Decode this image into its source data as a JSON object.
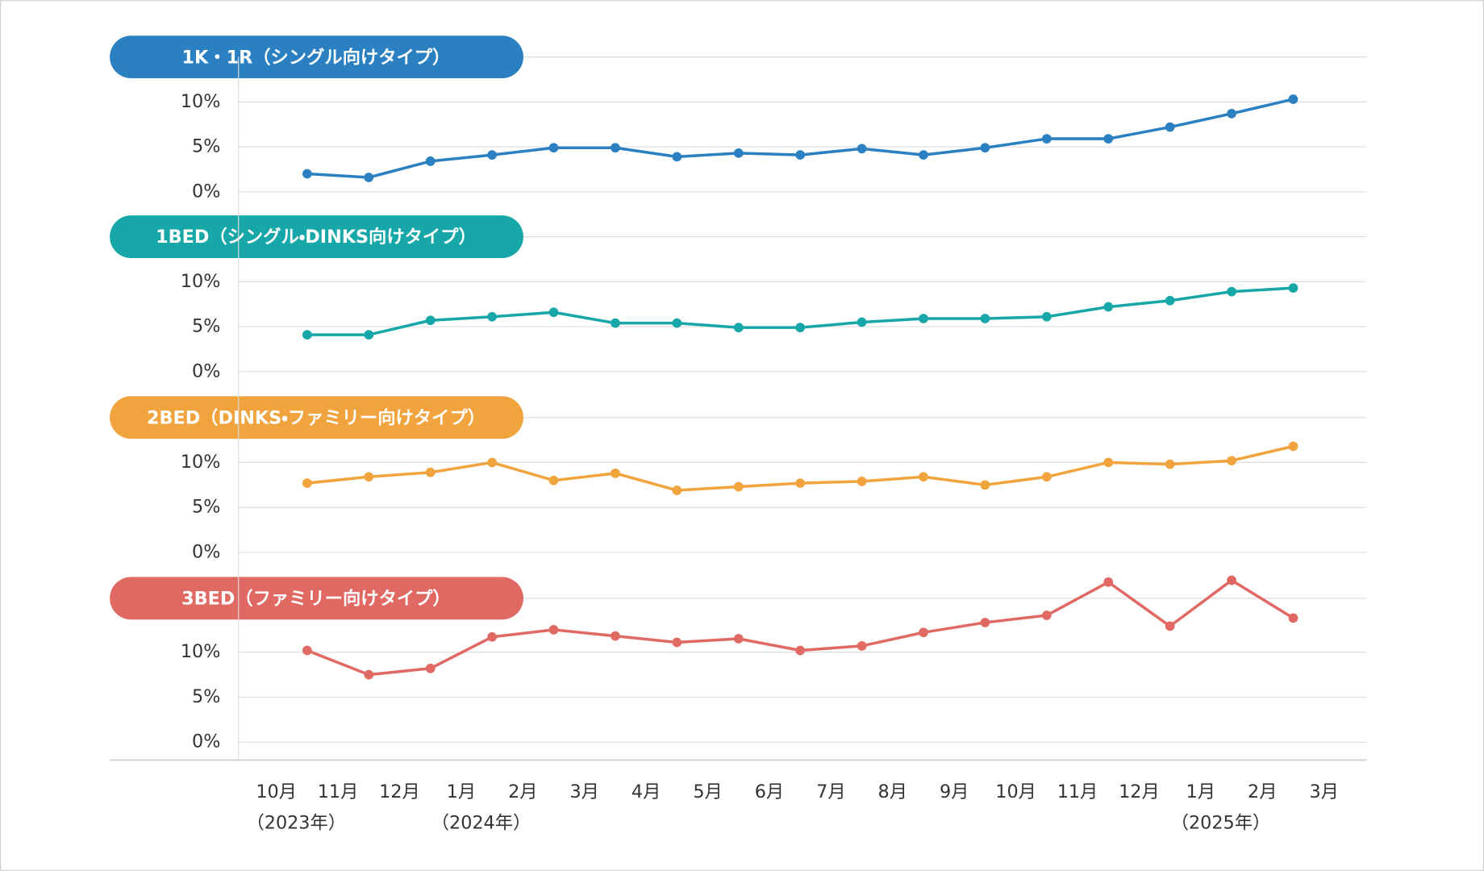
{
  "chart_data": {
    "type": "line",
    "categories": [
      "10月",
      "11月",
      "12月",
      "1月",
      "2月",
      "3月",
      "4月",
      "5月",
      "6月",
      "7月",
      "8月",
      "9月",
      "10月",
      "11月",
      "12月",
      "1月",
      "2月",
      "3月"
    ],
    "x_sublabels": [
      "（2023年）",
      null,
      null,
      "（2024年）",
      null,
      null,
      null,
      null,
      null,
      null,
      null,
      null,
      null,
      null,
      null,
      "（2025年）",
      null,
      null
    ],
    "grid": true,
    "series": [
      {
        "name": "1K・1R（シングル向けタイプ）",
        "color": "#2a80c0",
        "values": [
          2.0,
          1.6,
          3.4,
          4.1,
          4.9,
          4.9,
          3.9,
          4.3,
          4.1,
          4.8,
          4.1,
          4.9,
          5.9,
          5.9,
          7.2,
          8.7,
          10.3,
          null
        ],
        "ylim": [
          0,
          15
        ],
        "yticks": [
          {
            "value": 0,
            "label": "0%"
          },
          {
            "value": 5,
            "label": "5%"
          },
          {
            "value": 10,
            "label": "10%"
          }
        ]
      },
      {
        "name": "1BED（シングル・DINKS向けタイプ）",
        "color": "#17a7a8",
        "values": [
          4.1,
          4.1,
          5.7,
          6.1,
          6.6,
          5.4,
          5.4,
          4.9,
          4.9,
          5.5,
          5.9,
          5.9,
          6.1,
          7.2,
          7.9,
          8.9,
          9.3,
          null
        ],
        "ylim": [
          0,
          15
        ],
        "yticks": [
          {
            "value": 0,
            "label": "0%"
          },
          {
            "value": 5,
            "label": "5%"
          },
          {
            "value": 10,
            "label": "10%"
          }
        ]
      },
      {
        "name": "2BED（DINKS・ファミリー向けタイプ）",
        "color": "#f1a33d",
        "values": [
          7.7,
          8.4,
          8.9,
          10.0,
          8.0,
          8.8,
          6.9,
          7.3,
          7.7,
          7.9,
          8.4,
          7.5,
          8.4,
          10.0,
          9.8,
          10.2,
          11.8,
          null
        ],
        "ylim": [
          0,
          15
        ],
        "yticks": [
          {
            "value": 0,
            "label": "0%"
          },
          {
            "value": 5,
            "label": "5%"
          },
          {
            "value": 10,
            "label": "10%"
          }
        ]
      },
      {
        "name": "3BED（ファミリー向けタイプ）",
        "color": "#e06a63",
        "values": [
          10.2,
          7.5,
          8.2,
          11.7,
          12.5,
          11.8,
          11.1,
          11.5,
          10.2,
          10.7,
          12.2,
          13.3,
          14.1,
          17.8,
          12.9,
          18.0,
          13.8,
          null
        ],
        "ylim": [
          -2,
          16
        ],
        "yticks": [
          {
            "value": 0,
            "label": "0%"
          },
          {
            "value": 5,
            "label": "5%"
          },
          {
            "value": 10,
            "label": "10%"
          }
        ]
      }
    ]
  }
}
